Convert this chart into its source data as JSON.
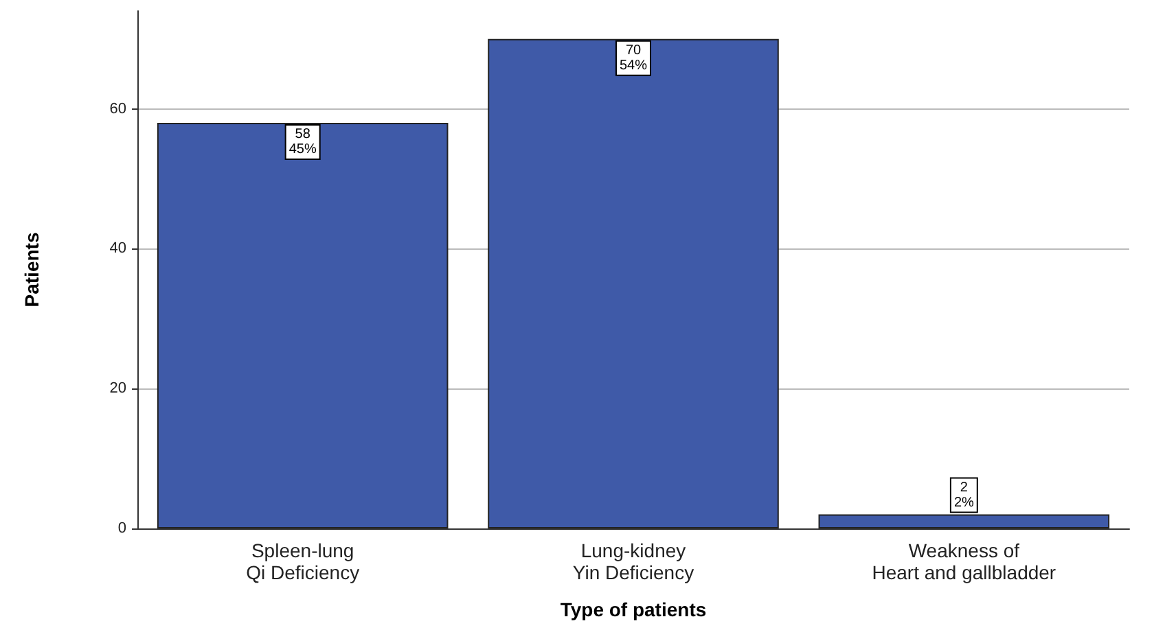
{
  "chart_data": {
    "type": "bar",
    "xlabel": "Type of patients",
    "ylabel": "Patients",
    "categories": [
      "Spleen-lung\nQi Deficiency",
      "Lung-kidney\nYin Deficiency",
      "Weakness of\nHeart and gallbladder"
    ],
    "values": [
      58,
      70,
      2
    ],
    "color": "#3f5aa8",
    "value_labels": [
      "58\n45%",
      "70\n54%",
      "2\n2%"
    ],
    "ylim": [
      0,
      74
    ],
    "yticks": [
      0,
      20,
      40,
      60
    ],
    "grid": "y"
  }
}
